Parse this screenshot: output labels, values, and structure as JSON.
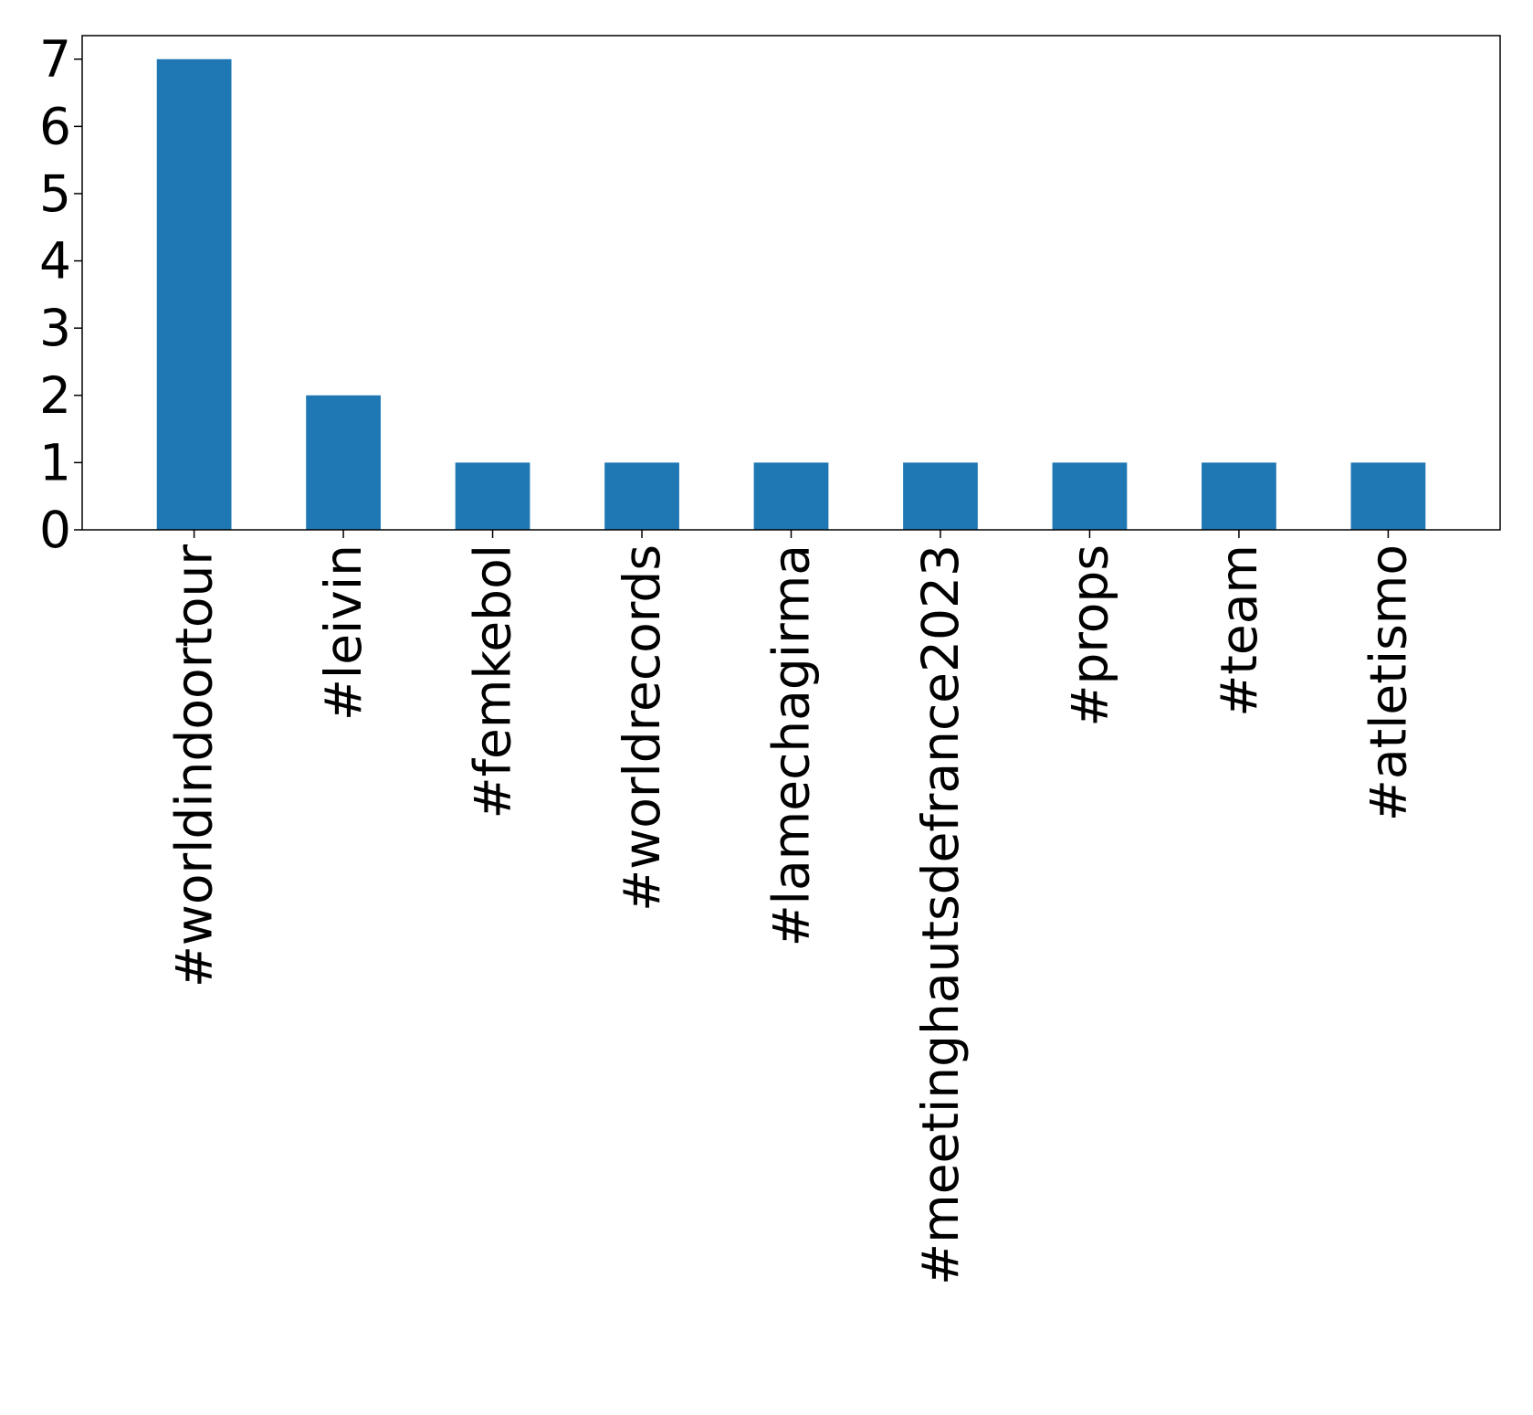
{
  "chart_data": {
    "type": "bar",
    "title": "",
    "xlabel": "",
    "ylabel": "",
    "categories": [
      "#worldindoortour",
      "#leivin",
      "#femkebol",
      "#worldrecords",
      "#lamechagirma",
      "#meetinghautsdefrance2023",
      "#props",
      "#team",
      "#atletismo"
    ],
    "values": [
      7,
      2,
      1,
      1,
      1,
      1,
      1,
      1,
      1
    ],
    "ylim": [
      0,
      7.35
    ],
    "yticks": [
      "0",
      "1",
      "2",
      "3",
      "4",
      "5",
      "6",
      "7"
    ],
    "grid": false,
    "legend": "none",
    "colors": {
      "bar": "#1f77b4",
      "axis": "#000000",
      "background": "#ffffff"
    }
  }
}
